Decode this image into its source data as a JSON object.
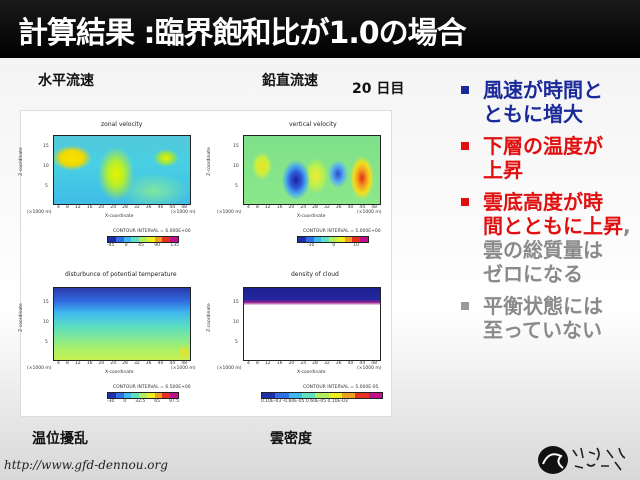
{
  "slide": {
    "title": "計算結果 :臨界飽和比が1.0の場合",
    "labels": {
      "top_left": "水平流速",
      "top_right": "鉛直流速",
      "day": "20 日目",
      "bottom_left": "温位擾乱",
      "bottom_right": "雲密度"
    },
    "bullets": [
      {
        "lines": [
          "風速が時間と",
          "ともに増大"
        ],
        "color": "blue"
      },
      {
        "lines": [
          "下層の温度が",
          "上昇"
        ],
        "color": "red"
      },
      {
        "lines": [
          "雲底高度が時",
          "間とともに上昇"
        ],
        "tail": ",",
        "extra": [
          "雲の総質量は",
          "ゼロになる"
        ],
        "color": "red"
      },
      {
        "lines": [
          "平衡状態には",
          "至っていない"
        ],
        "color": "gray"
      }
    ],
    "url": "http://www.gfd-dennou.org",
    "logo_icon": "gfd-dennou-logo-icon"
  },
  "figure": {
    "panels": [
      {
        "title": "zonal velocity",
        "xlabel": "X-coordinate",
        "ylabel": "Z-coordinate",
        "xunit": "(×1000 m)",
        "yunit": "(×1000 m)",
        "xticks": [
          "4",
          "8",
          "12",
          "16",
          "20",
          "24",
          "28",
          "32",
          "36",
          "40",
          "44",
          "48"
        ],
        "yticks": [
          "15",
          "10",
          "5"
        ],
        "contour": "CONTOUR INTERVAL = 6.000E+00",
        "cbar_ticks": [
          "-45",
          "0",
          "45",
          "90",
          "135"
        ]
      },
      {
        "title": "vertical velocity",
        "xlabel": "X-coordinate",
        "ylabel": "Z-coordinate",
        "xunit": "(×1000 m)",
        "yunit": "(×1000 m)",
        "xticks": [
          "4",
          "8",
          "12",
          "16",
          "20",
          "24",
          "28",
          "32",
          "36",
          "40",
          "44",
          "48"
        ],
        "yticks": [
          "15",
          "10",
          "5"
        ],
        "contour": "CONTOUR INTERVAL = 5.000E+00",
        "cbar_ticks": [
          "-10",
          "0",
          "10"
        ]
      },
      {
        "title": "disturbunce of potential temperature",
        "xlabel": "X-coordinate",
        "ylabel": "Z-coordinate",
        "xunit": "(×1000 m)",
        "yunit": "(×1000 m)",
        "xticks": [
          "4",
          "8",
          "12",
          "16",
          "20",
          "24",
          "28",
          "32",
          "36",
          "40",
          "44",
          "48"
        ],
        "yticks": [
          "15",
          "10",
          "5"
        ],
        "contour": "CONTOUR INTERVAL = 6.500E+00",
        "cbar_ticks": [
          "-30",
          "0",
          "32.5",
          "65",
          "97.5"
        ]
      },
      {
        "title": "density of cloud",
        "xlabel": "X-coordinate",
        "ylabel": "Z-coordinate",
        "xunit": "(×1000 m)",
        "yunit": "(×1000 m)",
        "xticks": [
          "4",
          "8",
          "12",
          "16",
          "20",
          "24",
          "28",
          "32",
          "36",
          "40",
          "44",
          "48"
        ],
        "yticks": [
          "15",
          "10",
          "5"
        ],
        "contour": "CONTOUR INTERVAL = 5.000E-05",
        "cbar_ticks": [
          "0.10E-03 -0.60E-05 0.60E-05 0.10E-03"
        ]
      }
    ]
  }
}
